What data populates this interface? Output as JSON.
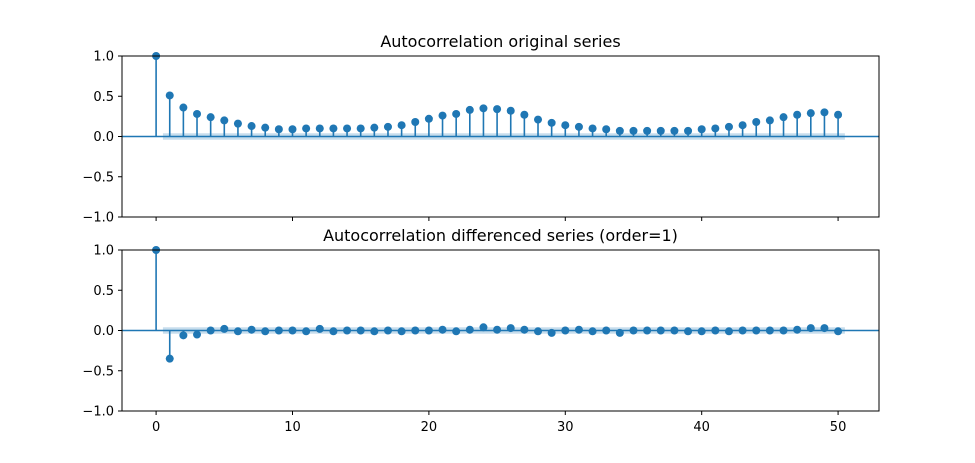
{
  "chart_data": [
    {
      "type": "stem",
      "title": "Autocorrelation original series",
      "xlabel": "",
      "ylabel": "",
      "xlim": [
        -2.5,
        53
      ],
      "ylim": [
        -1.0,
        1.0
      ],
      "xticks": [
        0,
        10,
        20,
        30,
        40,
        50
      ],
      "yticks": [
        -1.0,
        -0.5,
        0.0,
        0.5,
        1.0
      ],
      "ytick_labels": [
        "−1.0",
        "−0.5",
        "0.0",
        "0.5",
        "1.0"
      ],
      "show_xtick_labels": false,
      "lags": [
        0,
        1,
        2,
        3,
        4,
        5,
        6,
        7,
        8,
        9,
        10,
        11,
        12,
        13,
        14,
        15,
        16,
        17,
        18,
        19,
        20,
        21,
        22,
        23,
        24,
        25,
        26,
        27,
        28,
        29,
        30,
        31,
        32,
        33,
        34,
        35,
        36,
        37,
        38,
        39,
        40,
        41,
        42,
        43,
        44,
        45,
        46,
        47,
        48,
        49,
        50
      ],
      "values": [
        1.0,
        0.51,
        0.36,
        0.28,
        0.24,
        0.2,
        0.16,
        0.13,
        0.11,
        0.09,
        0.09,
        0.1,
        0.1,
        0.1,
        0.1,
        0.1,
        0.11,
        0.12,
        0.14,
        0.18,
        0.22,
        0.26,
        0.28,
        0.33,
        0.35,
        0.34,
        0.32,
        0.27,
        0.21,
        0.17,
        0.14,
        0.12,
        0.1,
        0.09,
        0.07,
        0.07,
        0.07,
        0.07,
        0.07,
        0.07,
        0.09,
        0.1,
        0.12,
        0.14,
        0.18,
        0.2,
        0.24,
        0.27,
        0.29,
        0.3,
        0.27
      ],
      "confidence_band": 0.04,
      "grid": false
    },
    {
      "type": "stem",
      "title": "Autocorrelation differenced series (order=1)",
      "xlabel": "",
      "ylabel": "",
      "xlim": [
        -2.5,
        53
      ],
      "ylim": [
        -1.0,
        1.0
      ],
      "xticks": [
        0,
        10,
        20,
        30,
        40,
        50
      ],
      "yticks": [
        -1.0,
        -0.5,
        0.0,
        0.5,
        1.0
      ],
      "ytick_labels": [
        "−1.0",
        "−0.5",
        "0.0",
        "0.5",
        "1.0"
      ],
      "show_xtick_labels": true,
      "lags": [
        0,
        1,
        2,
        3,
        4,
        5,
        6,
        7,
        8,
        9,
        10,
        11,
        12,
        13,
        14,
        15,
        16,
        17,
        18,
        19,
        20,
        21,
        22,
        23,
        24,
        25,
        26,
        27,
        28,
        29,
        30,
        31,
        32,
        33,
        34,
        35,
        36,
        37,
        38,
        39,
        40,
        41,
        42,
        43,
        44,
        45,
        46,
        47,
        48,
        49,
        50
      ],
      "values": [
        1.0,
        -0.35,
        -0.06,
        -0.05,
        0.0,
        0.02,
        -0.01,
        0.01,
        -0.01,
        0.0,
        0.0,
        -0.01,
        0.02,
        -0.01,
        0.0,
        0.0,
        -0.01,
        0.0,
        -0.01,
        0.0,
        0.0,
        0.01,
        -0.01,
        0.01,
        0.04,
        0.01,
        0.03,
        0.01,
        -0.01,
        -0.03,
        0.0,
        0.01,
        -0.01,
        0.0,
        -0.03,
        0.0,
        0.0,
        0.0,
        0.0,
        -0.01,
        -0.01,
        0.0,
        -0.01,
        0.0,
        0.0,
        0.0,
        0.0,
        0.01,
        0.03,
        0.03,
        -0.01
      ],
      "confidence_band": 0.04,
      "grid": false
    }
  ]
}
